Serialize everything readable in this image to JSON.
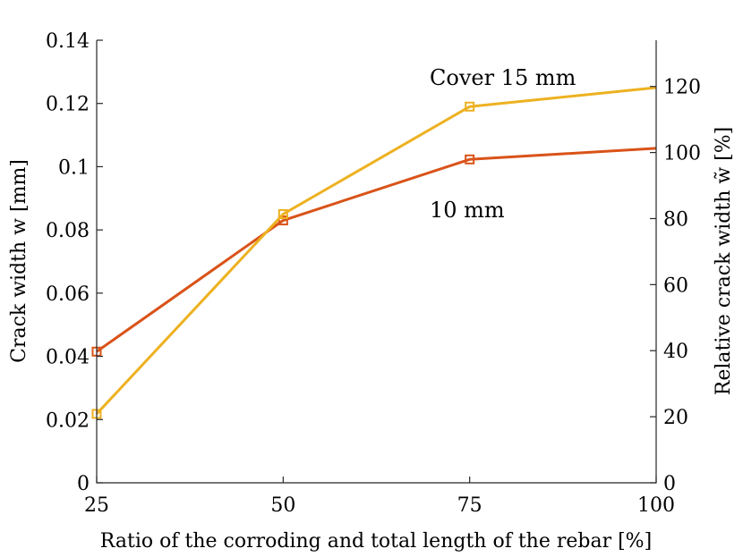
{
  "chart_data": {
    "type": "line",
    "x": [
      25,
      50,
      75,
      100
    ],
    "x_tick_labels": [
      "25",
      "50",
      "75",
      "100"
    ],
    "xlim": [
      25,
      100
    ],
    "xlabel": "Ratio of the corroding and total length of the rebar [%]",
    "ylabel_left": "Crack width w [mm]",
    "ylim_left": [
      0,
      0.14
    ],
    "y_left_tick_labels": [
      "0",
      "0.02",
      "0.04",
      "0.06",
      "0.08",
      "0.1",
      "0.12",
      "0.14"
    ],
    "ylabel_right": "Relative crack width w̃ [%]",
    "ylim_right": [
      0,
      134
    ],
    "y_right_tick_labels": [
      "0",
      "20",
      "40",
      "60",
      "80",
      "100",
      "120"
    ],
    "grid": false,
    "series": [
      {
        "name": "10 mm",
        "color": "#d95319",
        "values": [
          0.0415,
          0.083,
          0.1023,
          0.1058
        ],
        "markers": [
          true,
          true,
          true,
          false
        ]
      },
      {
        "name": "Cover 15 mm",
        "color": "#edb120",
        "values": [
          0.0218,
          0.085,
          0.119,
          0.125
        ],
        "markers": [
          true,
          true,
          true,
          false
        ]
      }
    ],
    "annotations": [
      "Cover 15 mm",
      "10 mm"
    ]
  }
}
